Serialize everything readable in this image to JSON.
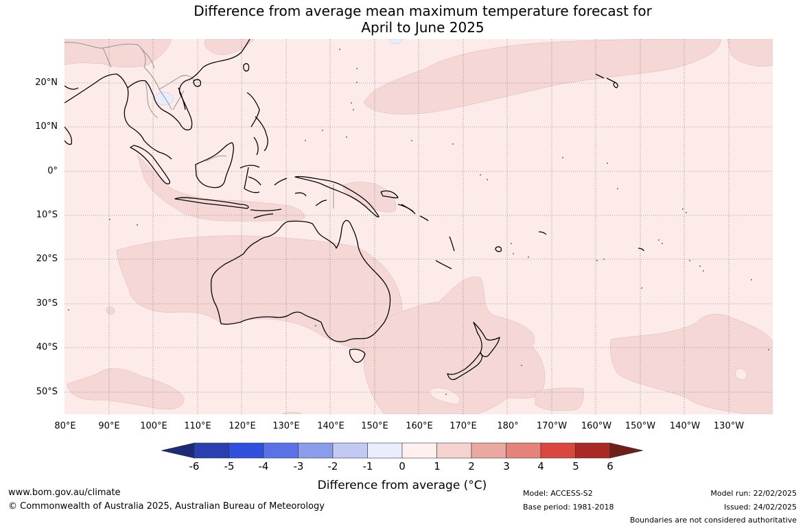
{
  "title": {
    "line1": "Difference from average mean maximum temperature forecast for",
    "line2": "April to June 2025"
  },
  "map": {
    "latitude_labels": [
      "20°N",
      "10°N",
      "0°",
      "10°S",
      "20°S",
      "30°S",
      "40°S",
      "50°S"
    ],
    "longitude_labels": [
      "80°E",
      "90°E",
      "100°E",
      "110°E",
      "120°E",
      "130°E",
      "140°E",
      "150°E",
      "160°E",
      "170°E",
      "180°",
      "170°W",
      "160°W",
      "150°W",
      "140°W",
      "130°W"
    ],
    "colors": {
      "background_0_to_1": "#fcebe9",
      "anomaly_1_to_2": "#f5d8d6",
      "anomaly_minus1_to_0": "#e9ecfb",
      "coastline": "#000000",
      "borders": "#8a8a8a",
      "graticule": "#333333"
    }
  },
  "colorbar": {
    "title": "Difference from average (°C)",
    "ticks": [
      "-6",
      "-5",
      "-4",
      "-3",
      "-2",
      "-1",
      "0",
      "1",
      "2",
      "3",
      "4",
      "5",
      "6"
    ],
    "colors": [
      "#1c2a78",
      "#2a3fb0",
      "#2f50dd",
      "#5a72e6",
      "#8a9deb",
      "#c2caf4",
      "#eaedfb",
      "#fdf0ee",
      "#f4d3d1",
      "#eba8a0",
      "#e4837a",
      "#d9473d",
      "#a92a24",
      "#6e1f19"
    ]
  },
  "footer": {
    "website": "www.bom.gov.au/climate",
    "copyright": "© Commonwealth of Australia 2025, Australian Bureau of Meteorology",
    "model": "Model: ACCESS-S2",
    "base_period": "Base period: 1981-2018",
    "model_run": "Model run: 22/02/2025",
    "issued": "Issued: 24/02/2025",
    "disclaimer": "Boundaries are not considered authoritative"
  }
}
